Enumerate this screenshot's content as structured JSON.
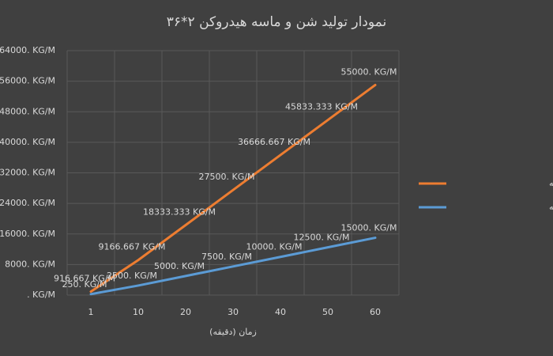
{
  "chart_data": {
    "type": "line",
    "title": "نمودار تولید شن و ماسه هیدروکن ۲*۳۶",
    "x_label": "زمان (دقیقه)",
    "categories": [
      "1",
      "10",
      "20",
      "30",
      "40",
      "50",
      "60"
    ],
    "series": [
      {
        "name": "تولید شن در دقیقه",
        "color": "#ed7d31",
        "values": [
          916.667,
          9166.667,
          18333.333,
          27500,
          36666.667,
          45833.333,
          55000
        ],
        "value_labels": [
          "916.667 KG/M",
          "9166.667 KG/M",
          "18333.333 KG/M",
          "27500. KG/M",
          "36666.667 KG/M",
          "45833.333 KG/M",
          "55000. KG/M"
        ]
      },
      {
        "name": "ماسه در دقیقه",
        "color": "#5b9bd5",
        "values": [
          250,
          2500,
          5000,
          7500,
          10000,
          12500,
          15000
        ],
        "value_labels": [
          "250. KG/M",
          "2500. KG/M",
          "5000. KG/M",
          "7500. KG/M",
          "10000. KG/M",
          "12500. KG/M",
          "15000. KG/M"
        ]
      }
    ],
    "ylim": [
      0,
      64000
    ],
    "yticks": [
      {
        "value": 0,
        "label": ". KG/M"
      },
      {
        "value": 8000,
        "label": "8000. KG/M"
      },
      {
        "value": 16000,
        "label": "16000. KG/M"
      },
      {
        "value": 24000,
        "label": "24000. KG/M"
      },
      {
        "value": 32000,
        "label": "32000. KG/M"
      },
      {
        "value": 40000,
        "label": "40000. KG/M"
      },
      {
        "value": 48000,
        "label": "48000. KG/M"
      },
      {
        "value": 56000,
        "label": "56000. KG/M"
      },
      {
        "value": 64000,
        "label": "64000. KG/M"
      }
    ],
    "grid": true,
    "legend": "right"
  }
}
